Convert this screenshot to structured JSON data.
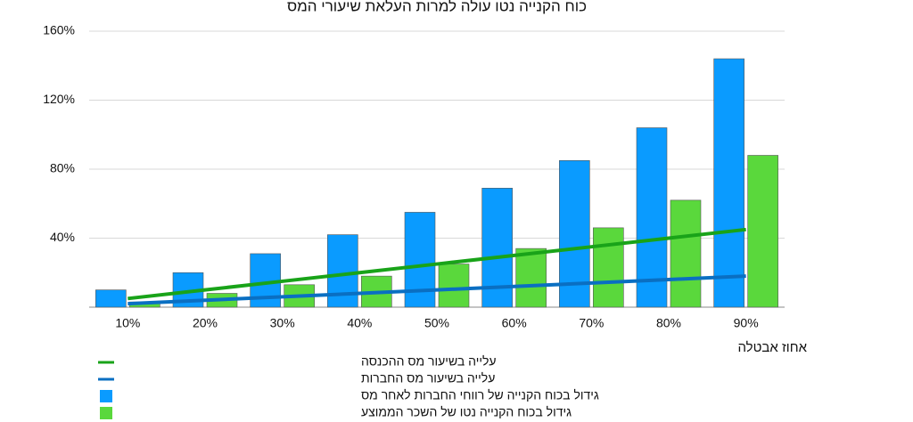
{
  "chart_data": {
    "type": "bar",
    "title": "כוח הקנייה נטו עולה למרות העלאת שיעורי המס",
    "x_label": "אחוז אבטלה",
    "categories": [
      "10%",
      "20%",
      "30%",
      "40%",
      "50%",
      "60%",
      "70%",
      "80%",
      "90%"
    ],
    "series": [
      {
        "name": "עלייה בשיעור מס ההכנסה",
        "type": "line",
        "color": "#19a319",
        "values": [
          5,
          10,
          15,
          20,
          25,
          30,
          35,
          40,
          45
        ]
      },
      {
        "name": "עלייה בשיעור מס החברות",
        "type": "line",
        "color": "#0a6fc2",
        "values": [
          2,
          4,
          6,
          8,
          10,
          12,
          14,
          16,
          18
        ]
      },
      {
        "name": "גידול בכוח הקנייה של רווחי החברות לאחר מס",
        "type": "bar",
        "color": "#0a9bff",
        "values": [
          10,
          20,
          31,
          42,
          55,
          69,
          85,
          104,
          144
        ]
      },
      {
        "name": "גידול בכוח הקנייה נטו של השכר הממוצע",
        "type": "bar",
        "color": "#5ad83c",
        "values": [
          3,
          8,
          13,
          18,
          25,
          34,
          46,
          62,
          88
        ]
      }
    ],
    "ylim": [
      0,
      160
    ],
    "yticks": [
      {
        "value": 40,
        "label": "40%"
      },
      {
        "value": 80,
        "label": "80%"
      },
      {
        "value": 120,
        "label": "120%"
      },
      {
        "value": 160,
        "label": "160%"
      }
    ],
    "grid": true
  }
}
